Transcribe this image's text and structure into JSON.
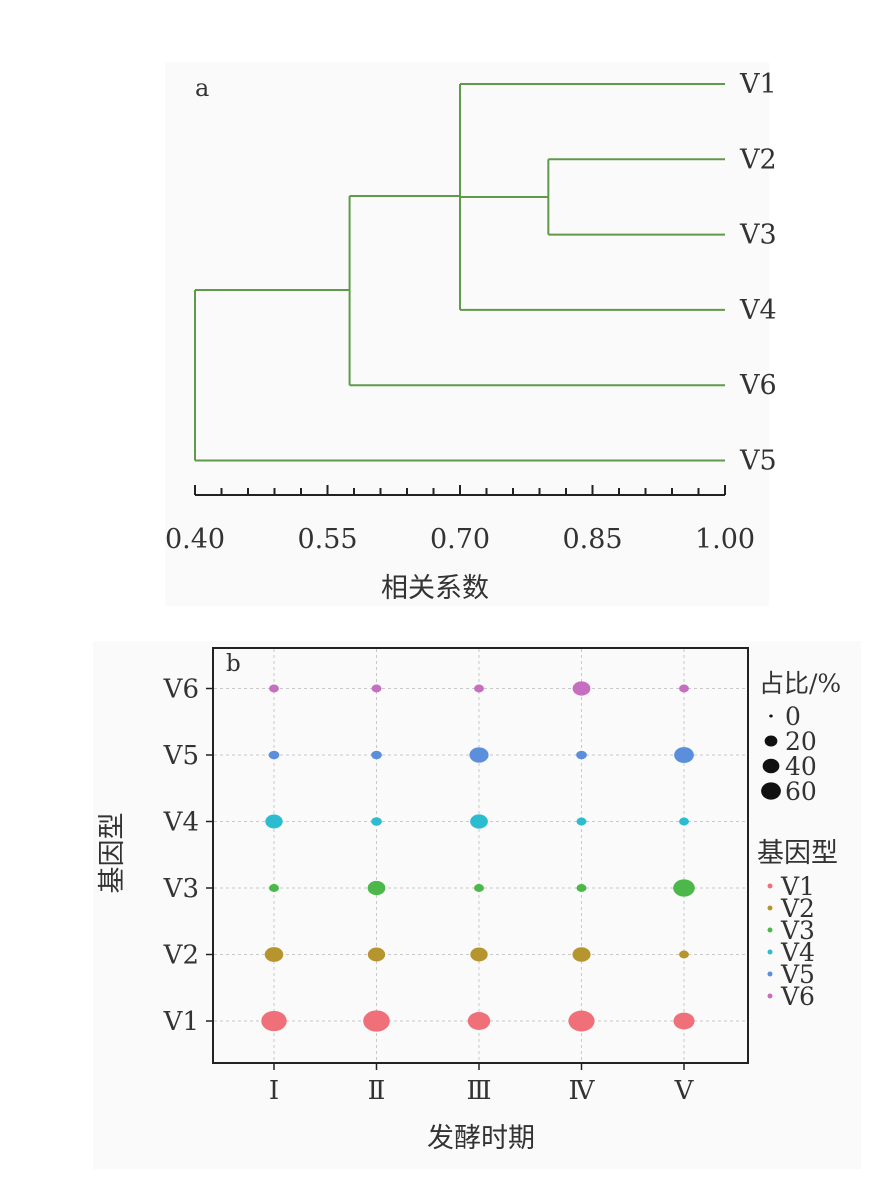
{
  "chart_data": [
    {
      "type": "dendrogram",
      "panel_label": "a",
      "xlabel": "相关系数",
      "xlim": [
        0.4,
        1.0
      ],
      "xticks": [
        "0.40",
        "0.55",
        "0.70",
        "0.85",
        "1.00"
      ],
      "leaves": [
        "V1",
        "V2",
        "V3",
        "V4",
        "V6",
        "V5"
      ],
      "merges": [
        {
          "members": [
            "V2",
            "V3"
          ],
          "height": 0.8
        },
        {
          "members": [
            "V1",
            "V2-V3",
            "V4"
          ],
          "height": 0.7
        },
        {
          "members": [
            "V1-V4",
            "V6"
          ],
          "height": 0.575
        },
        {
          "members": [
            "V1-V6",
            "V5"
          ],
          "height": 0.4
        }
      ],
      "line_color": "#5f9a4a"
    },
    {
      "type": "scatter",
      "panel_label": "b",
      "xlabel": "发酵时期",
      "ylabel": "基因型",
      "x_categories": [
        "Ⅰ",
        "Ⅱ",
        "Ⅲ",
        "Ⅳ",
        "Ⅴ"
      ],
      "y_categories": [
        "V1",
        "V2",
        "V3",
        "V4",
        "V5",
        "V6"
      ],
      "size_legend": {
        "title": "占比/%",
        "values": [
          0,
          20,
          40,
          60
        ]
      },
      "color_legend": {
        "title": "基因型",
        "items": [
          "V1",
          "V2",
          "V3",
          "V4",
          "V5",
          "V6"
        ]
      },
      "colors": {
        "V1": "#f0707a",
        "V2": "#b7952e",
        "V3": "#4cb84a",
        "V4": "#2bbcd0",
        "V5": "#5b8fdc",
        "V6": "#c66fc0"
      },
      "series": [
        {
          "name": "V1",
          "values": [
            45,
            50,
            33,
            48,
            28
          ]
        },
        {
          "name": "V2",
          "values": [
            20,
            17,
            17,
            19,
            3
          ]
        },
        {
          "name": "V3",
          "values": [
            3,
            18,
            3,
            3,
            30
          ]
        },
        {
          "name": "V4",
          "values": [
            17,
            4,
            18,
            3,
            3
          ]
        },
        {
          "name": "V5",
          "values": [
            4,
            4,
            22,
            4,
            24
          ]
        },
        {
          "name": "V6",
          "values": [
            3,
            3,
            3,
            18,
            3
          ]
        }
      ]
    }
  ]
}
